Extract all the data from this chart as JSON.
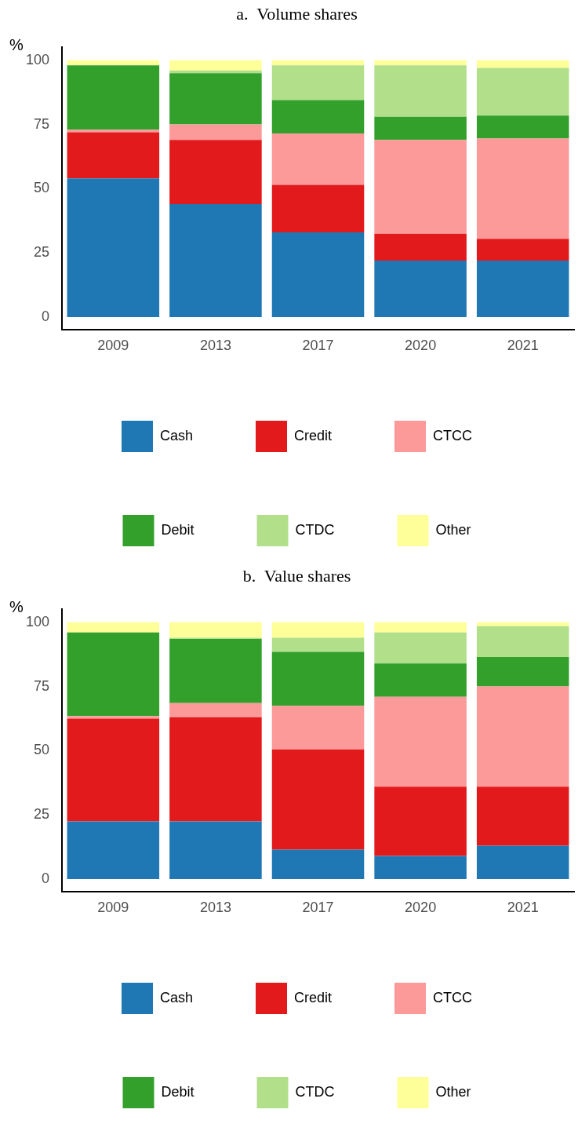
{
  "chart_data": [
    {
      "type": "bar",
      "title": "a.  Volume shares",
      "ylabel": "%",
      "stacked": true,
      "categories": [
        "2009",
        "2013",
        "2017",
        "2020",
        "2021"
      ],
      "ylim": [
        -5,
        105
      ],
      "yticks": [
        0,
        25,
        50,
        75,
        100
      ],
      "grid": false,
      "legend": "bottom",
      "series": [
        {
          "name": "Cash",
          "color": "#1f78b4",
          "values": [
            54,
            44,
            33,
            22,
            22
          ]
        },
        {
          "name": "Credit",
          "color": "#e31a1c",
          "values": [
            18,
            25,
            18.5,
            10.5,
            8.5
          ]
        },
        {
          "name": "CTCC",
          "color": "#fb9a99",
          "values": [
            1,
            6,
            20,
            36.5,
            39
          ]
        },
        {
          "name": "Debit",
          "color": "#33a02c",
          "values": [
            25,
            20,
            13,
            9,
            9
          ]
        },
        {
          "name": "CTDC",
          "color": "#b2df8a",
          "values": [
            0,
            1,
            13.5,
            20,
            18.5
          ]
        },
        {
          "name": "Other",
          "color": "#ffff99",
          "values": [
            2,
            4,
            2,
            2,
            3
          ]
        }
      ]
    },
    {
      "type": "bar",
      "title": "b.  Value shares",
      "ylabel": "%",
      "stacked": true,
      "categories": [
        "2009",
        "2013",
        "2017",
        "2020",
        "2021"
      ],
      "ylim": [
        -5,
        105
      ],
      "yticks": [
        0,
        25,
        50,
        75,
        100
      ],
      "grid": false,
      "legend": "bottom",
      "series": [
        {
          "name": "Cash",
          "color": "#1f78b4",
          "values": [
            22.5,
            22.5,
            11.5,
            9,
            13
          ]
        },
        {
          "name": "Credit",
          "color": "#e31a1c",
          "values": [
            40,
            40.5,
            39,
            27,
            23
          ]
        },
        {
          "name": "CTCC",
          "color": "#fb9a99",
          "values": [
            1,
            5.5,
            17,
            35,
            39
          ]
        },
        {
          "name": "Debit",
          "color": "#33a02c",
          "values": [
            32.5,
            25,
            21,
            13,
            11.5
          ]
        },
        {
          "name": "CTDC",
          "color": "#b2df8a",
          "values": [
            0,
            0.5,
            5.5,
            12,
            12
          ]
        },
        {
          "name": "Other",
          "color": "#ffff99",
          "values": [
            4,
            6,
            6,
            4,
            1.5
          ]
        }
      ]
    }
  ]
}
